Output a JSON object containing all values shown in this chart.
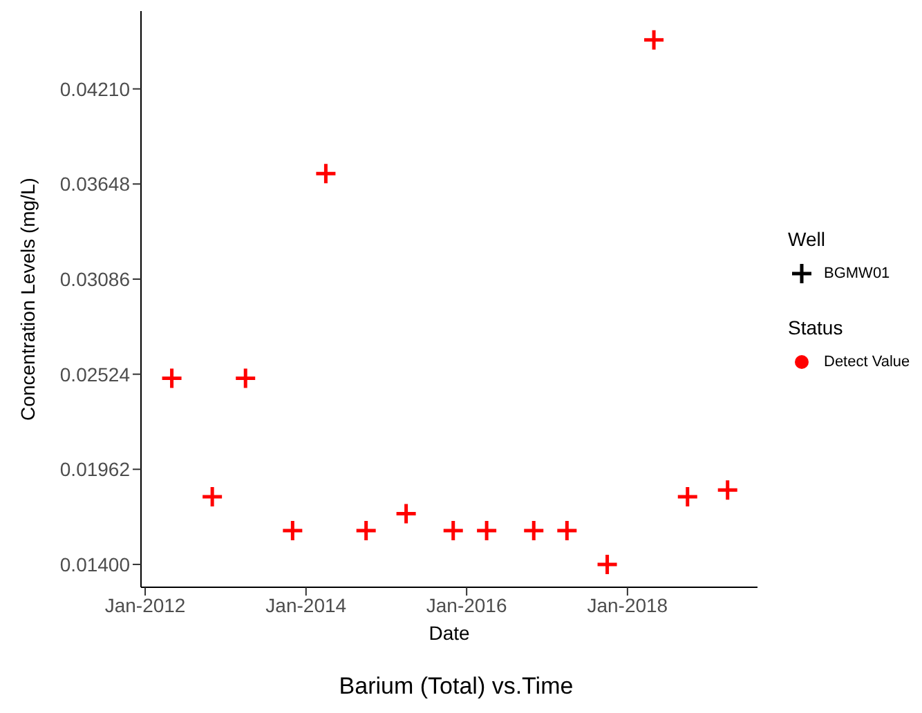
{
  "chart_data": {
    "type": "scatter",
    "title": "Barium (Total) vs.Time",
    "xlabel": "Date",
    "ylabel": "Concentration Levels (mg/L)",
    "legend_title": "Well",
    "legend": "right",
    "marker": "cross",
    "grid": false,
    "annotations": [
      "Status",
      "Detect Value"
    ],
    "x": [
      "2012-05-01",
      "2012-11-01",
      "2013-04-01",
      "2013-11-01",
      "2014-04-01",
      "2014-10-01",
      "2015-04-01",
      "2015-11-01",
      "2016-04-01",
      "2016-11-01",
      "2017-04-01",
      "2017-10-01",
      "2018-05-01",
      "2018-10-01",
      "2019-04-01"
    ],
    "series": [
      {
        "name": "BGMW01",
        "color": "#ff0000",
        "values": [
          0.025,
          0.018,
          0.025,
          0.016,
          0.0371,
          0.016,
          0.017,
          0.016,
          0.016,
          0.016,
          0.016,
          0.014,
          0.045,
          0.018,
          0.0184
        ]
      }
    ],
    "xlim": [
      "2011-12-13",
      "2019-08-15"
    ],
    "xticks": [
      {
        "value": "2012-01-01",
        "label": "Jan-2012"
      },
      {
        "value": "2014-01-01",
        "label": "Jan-2014"
      },
      {
        "value": "2016-01-01",
        "label": "Jan-2016"
      },
      {
        "value": "2018-01-01",
        "label": "Jan-2018"
      }
    ],
    "ylim": [
      0.01265,
      0.0467
    ],
    "yticks": [
      {
        "value": 0.014,
        "label": "0.01400"
      },
      {
        "value": 0.01962,
        "label": "0.01962"
      },
      {
        "value": 0.02524,
        "label": "0.02524"
      },
      {
        "value": 0.03086,
        "label": "0.03086"
      },
      {
        "value": 0.03648,
        "label": "0.03648"
      },
      {
        "value": 0.0421,
        "label": "0.04210"
      }
    ]
  }
}
